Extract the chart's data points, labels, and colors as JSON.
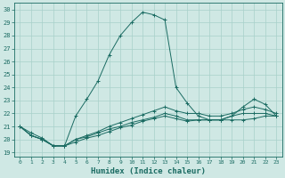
{
  "xlabel": "Humidex (Indice chaleur)",
  "xlim": [
    -0.5,
    23.5
  ],
  "ylim": [
    18.7,
    30.5
  ],
  "yticks": [
    19,
    20,
    21,
    22,
    23,
    24,
    25,
    26,
    27,
    28,
    29,
    30
  ],
  "xticks": [
    0,
    1,
    2,
    3,
    4,
    5,
    6,
    7,
    8,
    9,
    10,
    11,
    12,
    13,
    14,
    15,
    16,
    17,
    18,
    19,
    20,
    21,
    22,
    23
  ],
  "background_color": "#cfe8e4",
  "grid_color": "#a8d0ca",
  "line_color": "#1a6b62",
  "lines": [
    {
      "x": [
        0,
        1,
        2,
        3,
        4,
        5,
        6,
        7,
        8,
        9,
        10,
        11,
        12,
        13,
        14,
        15,
        16,
        17,
        18,
        19,
        20,
        21,
        22,
        23
      ],
      "y": [
        21.0,
        20.5,
        20.1,
        19.5,
        19.5,
        21.8,
        23.1,
        24.5,
        26.5,
        28.0,
        29.0,
        29.8,
        29.6,
        29.2,
        24.0,
        22.8,
        21.8,
        21.5,
        21.5,
        21.8,
        22.5,
        23.1,
        22.7,
        21.8
      ]
    },
    {
      "x": [
        0,
        1,
        2,
        3,
        4,
        5,
        6,
        7,
        8,
        9,
        10,
        11,
        12,
        13,
        14,
        15,
        16,
        17,
        18,
        19,
        20,
        21,
        22,
        23
      ],
      "y": [
        21.0,
        20.3,
        20.0,
        19.5,
        19.5,
        19.8,
        20.1,
        20.3,
        20.6,
        20.9,
        21.1,
        21.4,
        21.6,
        21.8,
        21.6,
        21.4,
        21.5,
        21.5,
        21.5,
        21.5,
        21.5,
        21.6,
        21.8,
        21.8
      ]
    },
    {
      "x": [
        0,
        1,
        2,
        3,
        4,
        5,
        6,
        7,
        8,
        9,
        10,
        11,
        12,
        13,
        14,
        15,
        16,
        17,
        18,
        19,
        20,
        21,
        22,
        23
      ],
      "y": [
        21.0,
        20.3,
        20.0,
        19.5,
        19.5,
        20.0,
        20.2,
        20.5,
        20.8,
        21.0,
        21.3,
        21.5,
        21.7,
        22.0,
        21.8,
        21.5,
        21.5,
        21.5,
        21.5,
        21.8,
        22.0,
        22.0,
        22.0,
        21.8
      ]
    },
    {
      "x": [
        0,
        1,
        2,
        3,
        4,
        5,
        6,
        7,
        8,
        9,
        10,
        11,
        12,
        13,
        14,
        15,
        16,
        17,
        18,
        19,
        20,
        21,
        22,
        23
      ],
      "y": [
        21.0,
        20.3,
        20.0,
        19.5,
        19.5,
        20.0,
        20.3,
        20.6,
        21.0,
        21.3,
        21.6,
        21.9,
        22.2,
        22.5,
        22.2,
        22.0,
        22.0,
        21.8,
        21.8,
        22.0,
        22.3,
        22.5,
        22.3,
        22.0
      ]
    }
  ]
}
